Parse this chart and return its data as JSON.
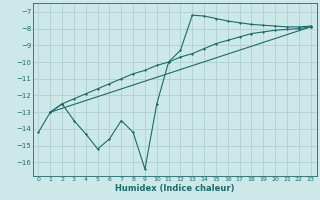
{
  "xlabel": "Humidex (Indice chaleur)",
  "bg_color": "#cce8e8",
  "grid_color": "#aacccc",
  "line_color": "#1a6b6b",
  "xlim": [
    -0.5,
    23.5
  ],
  "ylim": [
    -16.8,
    -6.5
  ],
  "yticks": [
    -7,
    -8,
    -9,
    -10,
    -11,
    -12,
    -13,
    -14,
    -15,
    -16
  ],
  "xticks": [
    0,
    1,
    2,
    3,
    4,
    5,
    6,
    7,
    8,
    9,
    10,
    11,
    12,
    13,
    14,
    15,
    16,
    17,
    18,
    19,
    20,
    21,
    22,
    23
  ],
  "series1_x": [
    0,
    1,
    2,
    3,
    4,
    5,
    6,
    7,
    8,
    9,
    10,
    11,
    12,
    13,
    14,
    15,
    16,
    17,
    18,
    19,
    20,
    21,
    22,
    23
  ],
  "series1_y": [
    -14.2,
    -13.0,
    -12.5,
    -13.5,
    -14.3,
    -15.2,
    -14.6,
    -13.5,
    -14.2,
    -16.4,
    -12.5,
    -10.0,
    -9.3,
    -7.2,
    -7.25,
    -7.4,
    -7.55,
    -7.65,
    -7.75,
    -7.8,
    -7.85,
    -7.9,
    -7.9,
    -7.85
  ],
  "series2_x": [
    1,
    2,
    3,
    4,
    5,
    6,
    7,
    8,
    9,
    10,
    11,
    12,
    13,
    14,
    15,
    16,
    17,
    18,
    19,
    20,
    21,
    22,
    23
  ],
  "series2_y": [
    -13.0,
    -12.5,
    -12.2,
    -11.9,
    -11.6,
    -11.3,
    -11.0,
    -10.7,
    -10.5,
    -10.2,
    -10.0,
    -9.7,
    -9.5,
    -9.2,
    -8.9,
    -8.7,
    -8.5,
    -8.3,
    -8.2,
    -8.1,
    -8.05,
    -8.0,
    -7.9
  ],
  "series3_x": [
    1,
    23
  ],
  "series3_y": [
    -13.0,
    -7.9
  ]
}
